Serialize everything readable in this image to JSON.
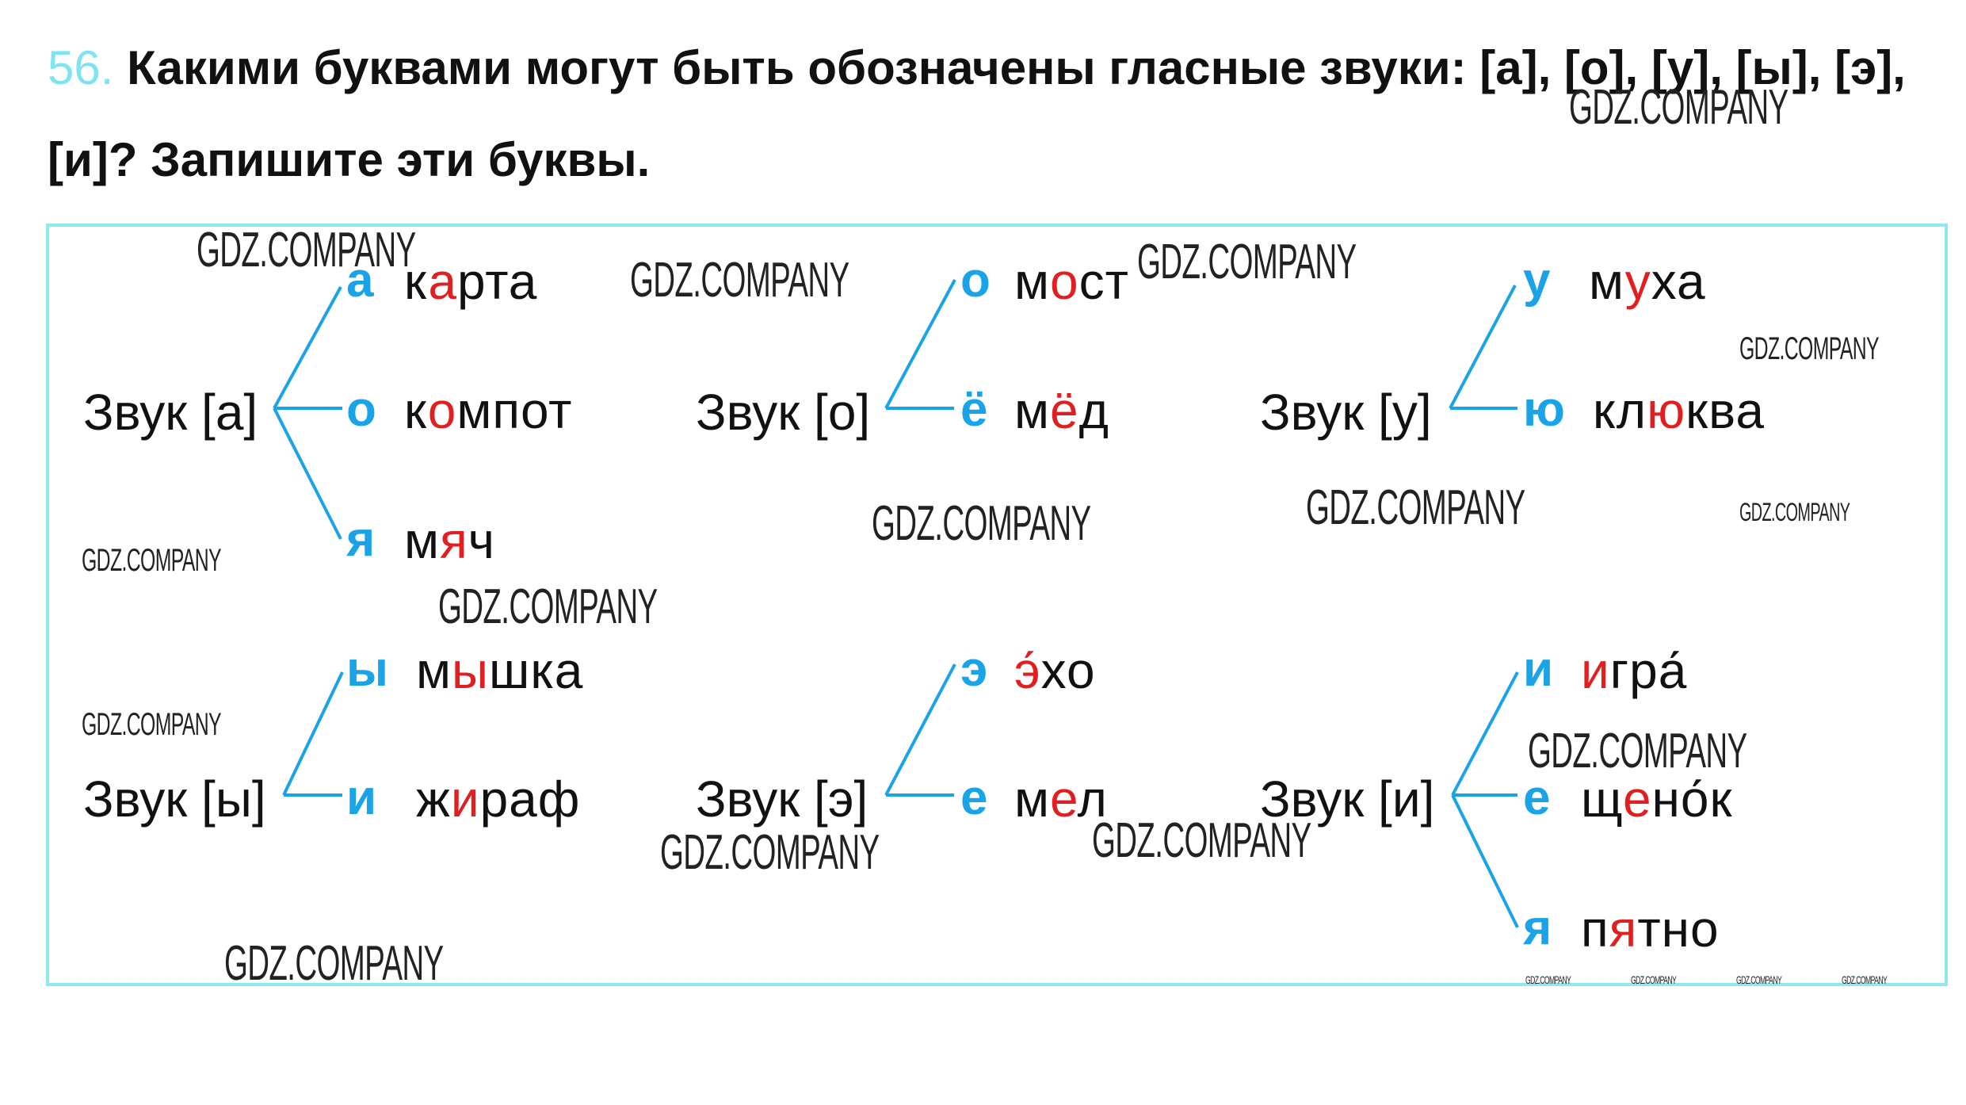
{
  "question": {
    "number": "56.",
    "line1": "Какими буквами могут быть обозначены гласные звуки: [а], [о], [у], [ы], [э],",
    "line2": "[и]? Запишите эти буквы."
  },
  "colors": {
    "accent": "#1aa3e6",
    "highlight": "#e02020",
    "frame": "#8fe7f0",
    "number": "#7fe4f2"
  },
  "groups": [
    {
      "label": "Звук [а]",
      "rows": [
        {
          "letter": "а",
          "word": [
            "к",
            "а",
            "рта"
          ]
        },
        {
          "letter": "о",
          "word": [
            "к",
            "о",
            "мпот"
          ]
        },
        {
          "letter": "я",
          "word": [
            "м",
            "я",
            "ч"
          ]
        }
      ]
    },
    {
      "label": "Звук [о]",
      "rows": [
        {
          "letter": "о",
          "word": [
            "м",
            "о",
            "ст"
          ]
        },
        {
          "letter": "ё",
          "word": [
            "м",
            "ё",
            "д"
          ]
        }
      ]
    },
    {
      "label": "Звук [у]",
      "rows": [
        {
          "letter": "у",
          "word": [
            "м",
            "у",
            "ха"
          ]
        },
        {
          "letter": "ю",
          "word": [
            "кл",
            "ю",
            "ква"
          ]
        }
      ]
    },
    {
      "label": "Звук [ы]",
      "rows": [
        {
          "letter": "ы",
          "word": [
            "м",
            "ы",
            "шка"
          ]
        },
        {
          "letter": "и",
          "word": [
            "ж",
            "и",
            "раф"
          ]
        }
      ]
    },
    {
      "label": "Звук [э]",
      "rows": [
        {
          "letter": "э",
          "word": [
            "",
            "э́",
            "хо"
          ]
        },
        {
          "letter": "е",
          "word": [
            "м",
            "е",
            "л"
          ]
        }
      ]
    },
    {
      "label": "Звук [и]",
      "rows": [
        {
          "letter": "и",
          "word": [
            "",
            "и",
            "гра́"
          ]
        },
        {
          "letter": "е",
          "word": [
            "щ",
            "е",
            "но́к"
          ]
        },
        {
          "letter": "я",
          "word": [
            "п",
            "я",
            "тно"
          ]
        }
      ]
    }
  ],
  "watermark": "GDZ.COMPANY"
}
